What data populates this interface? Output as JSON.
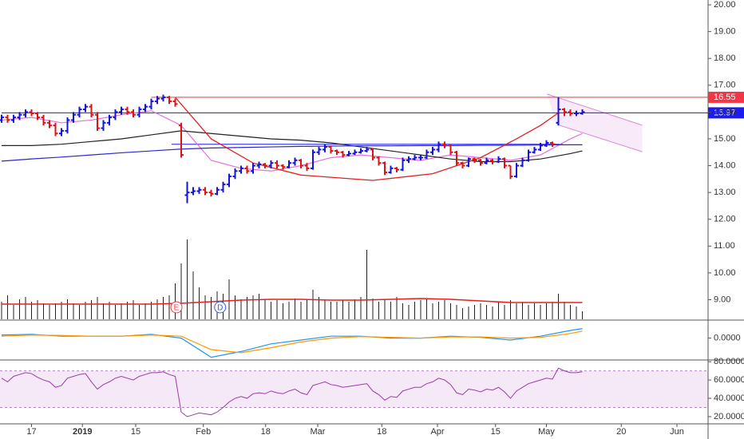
{
  "chart_data": {
    "type": "ohlc",
    "price": {
      "ylim": [
        8.27,
        20.18
      ],
      "yticks": [
        {
          "value": 9,
          "label": "9.00"
        },
        {
          "value": 10,
          "label": "10.00"
        },
        {
          "value": 11,
          "label": "11.00"
        },
        {
          "value": 12,
          "label": "12.00"
        },
        {
          "value": 13,
          "label": "13.00"
        },
        {
          "value": 14,
          "label": "14.00"
        },
        {
          "value": 15,
          "label": "15.00"
        },
        {
          "value": 16,
          "label": "16.00"
        },
        {
          "value": 17,
          "label": "17.00"
        },
        {
          "value": 18,
          "label": "18.00"
        },
        {
          "value": 19,
          "label": "19.00"
        },
        {
          "value": 20,
          "label": "20.00"
        }
      ],
      "up_color": "#1414d8",
      "down_color": "#d81414",
      "bars": [
        [
          15.7,
          15.9,
          15.6,
          15.8
        ],
        [
          15.8,
          15.9,
          15.6,
          15.7
        ],
        [
          15.7,
          15.9,
          15.6,
          15.8
        ],
        [
          15.8,
          16.0,
          15.7,
          15.9
        ],
        [
          15.9,
          16.1,
          15.8,
          16.0
        ],
        [
          16.0,
          16.1,
          15.85,
          15.95
        ],
        [
          15.95,
          16.0,
          15.7,
          15.8
        ],
        [
          15.8,
          15.9,
          15.5,
          15.6
        ],
        [
          15.6,
          15.7,
          15.4,
          15.5
        ],
        [
          15.5,
          15.6,
          15.1,
          15.2
        ],
        [
          15.2,
          15.4,
          15.1,
          15.3
        ],
        [
          15.3,
          15.8,
          15.2,
          15.7
        ],
        [
          15.7,
          16.0,
          15.6,
          15.9
        ],
        [
          15.9,
          16.2,
          15.8,
          16.1
        ],
        [
          16.1,
          16.3,
          16.0,
          16.2
        ],
        [
          16.2,
          16.3,
          15.8,
          15.9
        ],
        [
          15.9,
          16.0,
          15.3,
          15.4
        ],
        [
          15.4,
          15.7,
          15.3,
          15.6
        ],
        [
          15.6,
          15.9,
          15.5,
          15.8
        ],
        [
          15.8,
          16.1,
          15.7,
          16.0
        ],
        [
          16.0,
          16.2,
          15.9,
          16.1
        ],
        [
          16.1,
          16.2,
          15.9,
          16.0
        ],
        [
          16.0,
          16.1,
          15.8,
          15.9
        ],
        [
          15.9,
          16.2,
          15.8,
          16.1
        ],
        [
          16.1,
          16.3,
          16.0,
          16.2
        ],
        [
          16.2,
          16.5,
          16.1,
          16.4
        ],
        [
          16.4,
          16.6,
          16.3,
          16.5
        ],
        [
          16.5,
          16.65,
          16.4,
          16.55
        ],
        [
          16.55,
          16.6,
          16.3,
          16.4
        ],
        [
          16.4,
          16.5,
          16.2,
          16.3
        ],
        [
          15.5,
          15.6,
          14.3,
          14.4
        ],
        [
          12.9,
          13.4,
          12.6,
          13.0
        ],
        [
          13.0,
          13.2,
          12.9,
          13.05
        ],
        [
          13.05,
          13.2,
          12.95,
          13.1
        ],
        [
          13.1,
          13.2,
          12.9,
          13.0
        ],
        [
          13.0,
          13.1,
          12.85,
          12.95
        ],
        [
          12.95,
          13.2,
          12.9,
          13.1
        ],
        [
          13.1,
          13.4,
          13.0,
          13.3
        ],
        [
          13.3,
          13.7,
          13.2,
          13.6
        ],
        [
          13.6,
          13.9,
          13.5,
          13.8
        ],
        [
          13.8,
          14.0,
          13.7,
          13.9
        ],
        [
          13.9,
          14.0,
          13.7,
          13.8
        ],
        [
          13.8,
          14.1,
          13.7,
          14.0
        ],
        [
          14.0,
          14.15,
          13.9,
          14.05
        ],
        [
          14.05,
          14.1,
          13.9,
          14.0
        ],
        [
          14.0,
          14.2,
          13.9,
          14.1
        ],
        [
          14.1,
          14.2,
          13.9,
          14.0
        ],
        [
          14.0,
          14.05,
          13.85,
          13.95
        ],
        [
          13.95,
          14.2,
          13.9,
          14.1
        ],
        [
          14.1,
          14.3,
          14.0,
          14.2
        ],
        [
          14.2,
          14.25,
          13.9,
          14.0
        ],
        [
          14.0,
          14.1,
          13.8,
          13.9
        ],
        [
          13.9,
          14.6,
          13.85,
          14.5
        ],
        [
          14.5,
          14.7,
          14.4,
          14.6
        ],
        [
          14.6,
          14.8,
          14.5,
          14.7
        ],
        [
          14.7,
          14.75,
          14.45,
          14.55
        ],
        [
          14.55,
          14.6,
          14.4,
          14.5
        ],
        [
          14.5,
          14.55,
          14.3,
          14.4
        ],
        [
          14.4,
          14.55,
          14.35,
          14.45
        ],
        [
          14.45,
          14.6,
          14.4,
          14.5
        ],
        [
          14.5,
          14.65,
          14.45,
          14.55
        ],
        [
          14.55,
          14.7,
          14.5,
          14.6
        ],
        [
          14.6,
          14.65,
          14.2,
          14.3
        ],
        [
          14.3,
          14.35,
          14.0,
          14.1
        ],
        [
          14.1,
          14.15,
          13.65,
          13.75
        ],
        [
          13.75,
          14.0,
          13.7,
          13.9
        ],
        [
          13.9,
          13.95,
          13.75,
          13.85
        ],
        [
          13.85,
          14.3,
          13.8,
          14.2
        ],
        [
          14.2,
          14.35,
          14.1,
          14.25
        ],
        [
          14.25,
          14.4,
          14.2,
          14.3
        ],
        [
          14.3,
          14.4,
          14.2,
          14.3
        ],
        [
          14.3,
          14.6,
          14.25,
          14.5
        ],
        [
          14.5,
          14.7,
          14.4,
          14.6
        ],
        [
          14.6,
          14.9,
          14.5,
          14.8
        ],
        [
          14.8,
          14.9,
          14.65,
          14.75
        ],
        [
          14.75,
          14.8,
          14.4,
          14.5
        ],
        [
          14.5,
          14.55,
          14.0,
          14.1
        ],
        [
          14.1,
          14.15,
          13.9,
          14.0
        ],
        [
          14.0,
          14.3,
          13.95,
          14.25
        ],
        [
          14.25,
          14.3,
          14.1,
          14.2
        ],
        [
          14.2,
          14.25,
          14.0,
          14.1
        ],
        [
          14.1,
          14.3,
          14.05,
          14.2
        ],
        [
          14.2,
          14.25,
          14.05,
          14.15
        ],
        [
          14.15,
          14.35,
          14.1,
          14.25
        ],
        [
          14.25,
          14.3,
          13.9,
          14.0
        ],
        [
          14.0,
          14.0,
          13.5,
          13.6
        ],
        [
          13.6,
          14.1,
          13.55,
          14.0
        ],
        [
          14.0,
          14.3,
          13.95,
          14.2
        ],
        [
          14.2,
          14.6,
          14.15,
          14.5
        ],
        [
          14.5,
          14.7,
          14.45,
          14.6
        ],
        [
          14.6,
          14.85,
          14.55,
          14.75
        ],
        [
          14.75,
          14.95,
          14.7,
          14.85
        ],
        [
          14.85,
          14.9,
          14.7,
          14.8
        ],
        [
          15.6,
          16.55,
          15.5,
          16.1
        ],
        [
          16.1,
          16.15,
          15.85,
          16.0
        ],
        [
          16.0,
          16.1,
          15.85,
          15.95
        ],
        [
          15.95,
          16.05,
          15.85,
          15.95
        ],
        [
          15.95,
          16.1,
          15.9,
          16.0
        ]
      ],
      "ma_x": [
        0,
        5,
        10,
        15,
        20,
        25,
        30,
        35,
        40,
        45,
        50,
        55,
        60,
        65,
        70,
        75,
        80,
        85,
        90,
        95,
        97
      ],
      "moving_averages": [
        {
          "color": "#e36fe0",
          "values": [
            15.7,
            15.8,
            15.6,
            15.7,
            15.9,
            16.05,
            15.5,
            14.2,
            13.9,
            13.8,
            14.0,
            14.3,
            14.4,
            14.3,
            14.2,
            14.4,
            14.3,
            14.2,
            14.4,
            15.0,
            15.2
          ]
        },
        {
          "color": "#222222",
          "values": [
            14.75,
            14.75,
            14.8,
            14.9,
            15.0,
            15.15,
            15.3,
            15.2,
            15.1,
            15.0,
            14.95,
            14.85,
            14.7,
            14.55,
            14.4,
            14.25,
            14.15,
            14.15,
            14.25,
            14.45,
            14.55
          ]
        },
        {
          "color": "#2a2ac8",
          "values": [
            14.17,
            14.25,
            14.32,
            14.4,
            14.48,
            14.55,
            14.62,
            14.66,
            14.68,
            14.7,
            14.72,
            14.73,
            14.74,
            14.74,
            14.75,
            14.75,
            14.76,
            14.76,
            14.77,
            14.78,
            14.78
          ]
        }
      ],
      "arc": {
        "color": "#e32020",
        "x": [
          29,
          35,
          42,
          50,
          62,
          72,
          80,
          86,
          90,
          93
        ],
        "values": [
          16.55,
          15.0,
          14.1,
          13.65,
          13.45,
          13.7,
          14.3,
          15.0,
          15.5,
          15.97
        ]
      },
      "levels": [
        {
          "value": 16.55,
          "label": "16.55",
          "color": "#f23645",
          "from": 25
        },
        {
          "value": 15.97,
          "label": "15.97",
          "color": "#1c1cf0",
          "from": 0
        },
        {
          "value": 14.8,
          "color": "#1c1cf0",
          "from": 28.4,
          "to": 93.7
        }
      ],
      "channel": {
        "color": "#d88ad8",
        "upper": [
          [
            91.1,
            16.67
          ],
          [
            107,
            15.51
          ]
        ],
        "lower": [
          [
            92.7,
            15.54
          ],
          [
            107,
            14.52
          ]
        ]
      },
      "events": [
        {
          "label": "E",
          "index": 29.2,
          "color": "#f23645"
        },
        {
          "label": "D",
          "index": 36.5,
          "color": "#2962ff"
        }
      ]
    },
    "volume": {
      "color": "#222222",
      "values": [
        22,
        30,
        18,
        25,
        28,
        22,
        24,
        20,
        18,
        20,
        22,
        25,
        20,
        18,
        22,
        24,
        28,
        20,
        22,
        18,
        20,
        22,
        24,
        18,
        20,
        22,
        25,
        28,
        30,
        45,
        70,
        100,
        60,
        40,
        30,
        28,
        35,
        32,
        50,
        30,
        25,
        28,
        30,
        32,
        25,
        22,
        24,
        20,
        22,
        26,
        22,
        25,
        37,
        28,
        24,
        22,
        22,
        24,
        22,
        25,
        28,
        87,
        26,
        22,
        25,
        22,
        28,
        20,
        18,
        22,
        24,
        25,
        20,
        22,
        24,
        20,
        18,
        14,
        16,
        18,
        20,
        18,
        16,
        22,
        18,
        24,
        20,
        22,
        18,
        20,
        18,
        20,
        22,
        32,
        22,
        18,
        16,
        10
      ],
      "ma_color": "#e32020",
      "ma": [
        19,
        19,
        19,
        19,
        19,
        19,
        20,
        22,
        24,
        25,
        25,
        24,
        24,
        25,
        26,
        25,
        23,
        21,
        21,
        21,
        21
      ]
    },
    "macd": {
      "ylim": [
        -0.55,
        0.45
      ],
      "yticks": [
        {
          "value": 0,
          "label": "0.0000"
        }
      ],
      "series": [
        {
          "color": "#2196f3",
          "values": [
            0.08,
            0.1,
            0.05,
            0.05,
            0.05,
            0.1,
            0.0,
            -0.5,
            -0.35,
            -0.15,
            -0.05,
            0.05,
            0.05,
            0.0,
            0.0,
            0.05,
            0.02,
            -0.05,
            0.05,
            0.2,
            0.25
          ]
        },
        {
          "color": "#ff9800",
          "values": [
            0.05,
            0.08,
            0.07,
            0.05,
            0.05,
            0.08,
            0.05,
            -0.3,
            -0.38,
            -0.25,
            -0.1,
            0.0,
            0.04,
            0.02,
            0.0,
            0.03,
            0.03,
            0.0,
            0.02,
            0.12,
            0.18
          ]
        }
      ]
    },
    "rsi": {
      "ylim": [
        13,
        81
      ],
      "band": [
        30,
        70
      ],
      "color": "#9c3aa8",
      "yticks": [
        {
          "value": 20,
          "label": "20.0000"
        },
        {
          "value": 40,
          "label": "40.0000"
        },
        {
          "value": 60,
          "label": "60.0000"
        },
        {
          "value": 80,
          "label": "80.0000"
        }
      ],
      "values": [
        62,
        58,
        64,
        66,
        68,
        67,
        63,
        60,
        58,
        52,
        54,
        62,
        64,
        66,
        67,
        58,
        50,
        55,
        58,
        62,
        64,
        62,
        60,
        64,
        66,
        68,
        68,
        69,
        66,
        64,
        25,
        20,
        22,
        24,
        23,
        22,
        25,
        30,
        36,
        40,
        42,
        40,
        45,
        46,
        45,
        48,
        46,
        45,
        48,
        50,
        46,
        44,
        54,
        56,
        58,
        55,
        54,
        52,
        53,
        54,
        55,
        56,
        48,
        44,
        38,
        42,
        41,
        48,
        50,
        52,
        52,
        56,
        58,
        62,
        60,
        55,
        46,
        44,
        50,
        49,
        47,
        50,
        49,
        52,
        47,
        40,
        48,
        52,
        56,
        58,
        60,
        62,
        61,
        73,
        70,
        68,
        68,
        69
      ]
    },
    "xticks": [
      {
        "value": 5,
        "label": "17"
      },
      {
        "value": 13.5,
        "label": "2019"
      },
      {
        "value": 22.4,
        "label": "15"
      },
      {
        "value": 33.7,
        "label": "Feb"
      },
      {
        "value": 44.1,
        "label": "18"
      },
      {
        "value": 52.8,
        "label": "Mar"
      },
      {
        "value": 63.5,
        "label": "18"
      },
      {
        "value": 72.8,
        "label": "Apr"
      },
      {
        "value": 82.5,
        "label": "15"
      },
      {
        "value": 91,
        "label": "May"
      },
      {
        "value": 103.5,
        "label": "20"
      },
      {
        "value": 112.8,
        "label": "Jun"
      }
    ]
  }
}
